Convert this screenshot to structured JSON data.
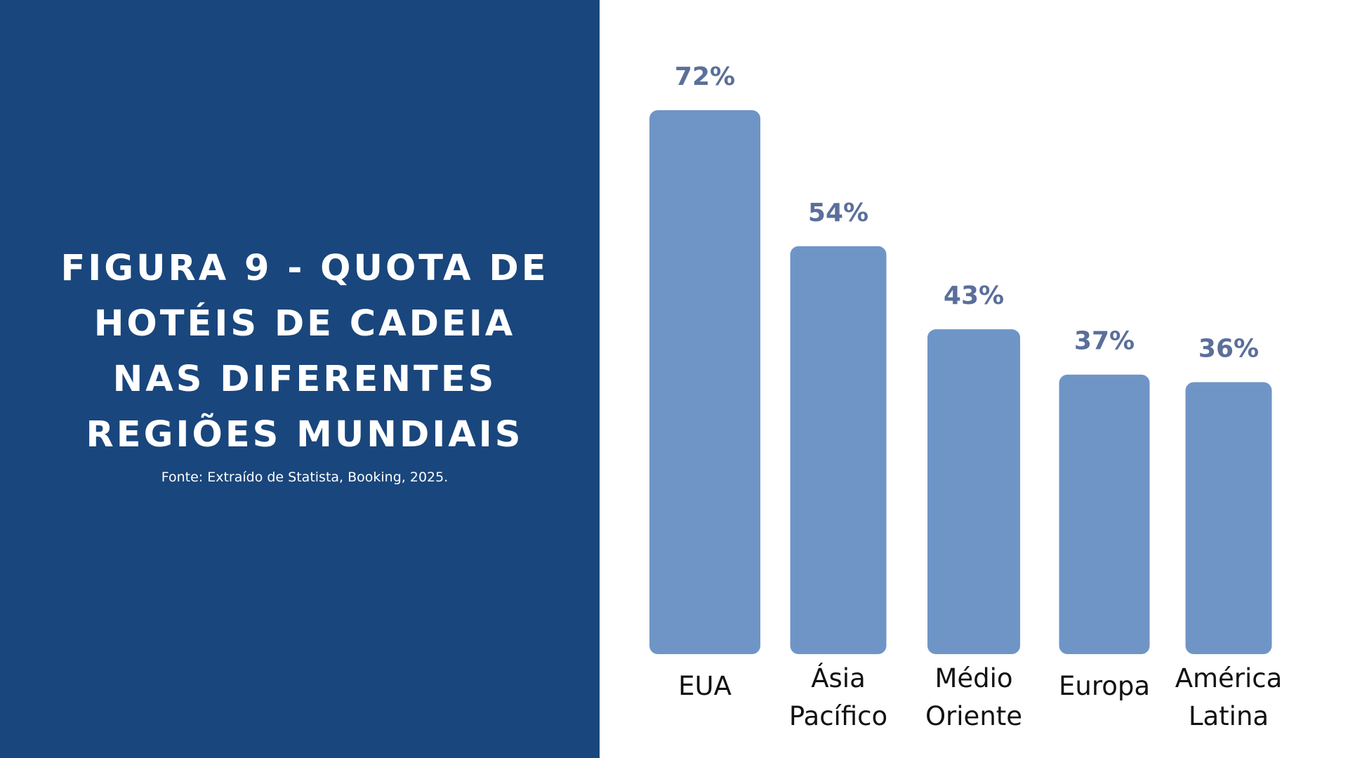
{
  "slide": {
    "title": "FIGURA 9 - QUOTA DE HOTÉIS DE CADEIA NAS DIFERENTES REGIÕES MUNDIAIS",
    "source": "Fonte: Extraído de Statista, Booking, 2025."
  },
  "colors": {
    "panel": "#19467c",
    "bar": "#6f95c7",
    "value_label": "#5a6f9a"
  },
  "chart_data": {
    "type": "bar",
    "title": "",
    "xlabel": "",
    "ylabel": "",
    "categories": [
      "EUA",
      "Ásia Pacífico",
      "Médio Oriente",
      "Europa",
      "América Latina"
    ],
    "category_lines": [
      [
        "EUA"
      ],
      [
        "Ásia",
        "Pacífico"
      ],
      [
        "Médio",
        "Oriente"
      ],
      [
        "Europa"
      ],
      [
        "América",
        "Latina"
      ]
    ],
    "values": [
      72,
      54,
      43,
      37,
      36
    ],
    "value_labels": [
      "72%",
      "54%",
      "43%",
      "37%",
      "36%"
    ],
    "unit": "%",
    "ylim": [
      0,
      72
    ],
    "grid": false,
    "legend": "none"
  }
}
